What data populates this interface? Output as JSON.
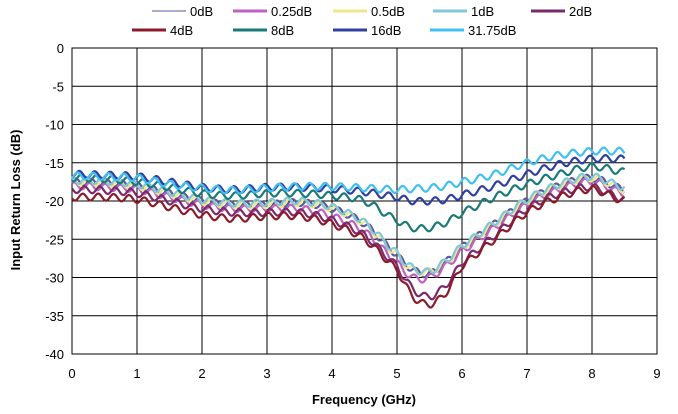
{
  "chart_data": {
    "type": "line",
    "title": "",
    "xlabel": "Frequency (GHz)",
    "ylabel": "Input Return Loss (dB)",
    "xlim": [
      0,
      9
    ],
    "ylim": [
      -40,
      0
    ],
    "x_ticks": [
      0,
      1,
      2,
      3,
      4,
      5,
      6,
      7,
      8,
      9
    ],
    "y_ticks": [
      0,
      -5,
      -10,
      -15,
      -20,
      -25,
      -30,
      -35,
      -40
    ],
    "grid": true,
    "legend_position": "top",
    "x": [
      0,
      0.5,
      1,
      1.5,
      2,
      2.5,
      3,
      3.5,
      4,
      4.5,
      5,
      5.25,
      5.5,
      5.75,
      6,
      6.5,
      7,
      7.5,
      8,
      8.5
    ],
    "series": [
      {
        "name": "0dB",
        "color": "#5a5aa0",
        "values": [
          -17.5,
          -17.6,
          -18,
          -19,
          -20,
          -20.5,
          -20.5,
          -20.2,
          -21,
          -23,
          -27,
          -29,
          -29.5,
          -28,
          -26,
          -23,
          -20,
          -18,
          -17,
          -18.5
        ]
      },
      {
        "name": "0.25dB",
        "color": "#c060c0",
        "values": [
          -18,
          -18.2,
          -18.5,
          -19.5,
          -20.5,
          -21,
          -21,
          -21,
          -22,
          -24,
          -28,
          -30,
          -30,
          -28.5,
          -26.5,
          -23.5,
          -20.5,
          -18.5,
          -17.5,
          -19
        ]
      },
      {
        "name": "0.5dB",
        "color": "#f0e68c",
        "values": [
          -17.5,
          -17.6,
          -18,
          -19,
          -20,
          -20.5,
          -20.5,
          -20.2,
          -21,
          -23,
          -27,
          -29,
          -29.2,
          -28,
          -26,
          -23,
          -20,
          -18,
          -17,
          -18.5
        ]
      },
      {
        "name": "1dB",
        "color": "#7fc8d8",
        "values": [
          -17.3,
          -17.4,
          -17.8,
          -18.8,
          -19.8,
          -20.3,
          -20.2,
          -20,
          -20.8,
          -22.8,
          -26.8,
          -28.8,
          -29.2,
          -27.8,
          -25.8,
          -22.8,
          -19.8,
          -17.8,
          -16.8,
          -18.2
        ]
      },
      {
        "name": "2dB",
        "color": "#7a2a6a",
        "values": [
          -18.5,
          -18.6,
          -19,
          -20,
          -21,
          -21.5,
          -21.5,
          -21.5,
          -22.5,
          -24.5,
          -28.5,
          -31.5,
          -32.5,
          -31,
          -28,
          -24.5,
          -21,
          -19,
          -18.2,
          -19.8
        ]
      },
      {
        "name": "4dB",
        "color": "#8b1a2a",
        "values": [
          -19.5,
          -19.5,
          -19.8,
          -20.8,
          -21.8,
          -22.3,
          -22,
          -22,
          -23,
          -25,
          -29,
          -32.5,
          -33.5,
          -32,
          -28.5,
          -25,
          -21.5,
          -19.5,
          -18.5,
          -20
        ]
      },
      {
        "name": "8dB",
        "color": "#1a7a7a",
        "values": [
          -17,
          -17.1,
          -17.5,
          -18.2,
          -19,
          -19.3,
          -19,
          -19,
          -19.3,
          -20,
          -22.5,
          -23.5,
          -23.5,
          -22.8,
          -21.5,
          -19.5,
          -17.8,
          -16.5,
          -15.5,
          -16.2
        ]
      },
      {
        "name": "16dB",
        "color": "#3040a0",
        "values": [
          -16.5,
          -16.6,
          -16.8,
          -17.5,
          -18.2,
          -18.5,
          -18.2,
          -18.2,
          -18.4,
          -18.8,
          -19.5,
          -20,
          -20,
          -19.8,
          -19.2,
          -18,
          -16.5,
          -15.2,
          -14.5,
          -14.5
        ]
      },
      {
        "name": "31.75dB",
        "color": "#40c0f0",
        "values": [
          -16.7,
          -16.8,
          -17,
          -17.8,
          -18.3,
          -18.6,
          -18.3,
          -18.1,
          -18.1,
          -18.3,
          -18.5,
          -18.4,
          -18.3,
          -18,
          -17.5,
          -16.5,
          -15,
          -14,
          -13.5,
          -13.5
        ]
      }
    ]
  }
}
